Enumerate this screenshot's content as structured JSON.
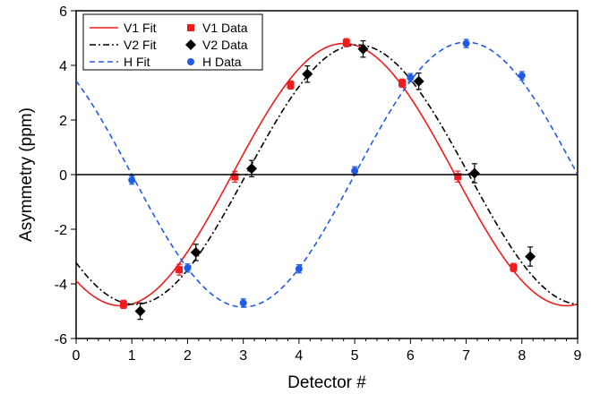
{
  "chart_data": {
    "type": "scatter",
    "title": "",
    "xlabel": "Detector #",
    "ylabel": "Asymmetry (ppm)",
    "xlim": [
      0,
      9
    ],
    "ylim": [
      -6,
      6
    ],
    "xticks": [
      "0",
      "1",
      "2",
      "3",
      "4",
      "5",
      "6",
      "7",
      "8",
      "9"
    ],
    "yticks": [
      "-6",
      "-4",
      "-2",
      "0",
      "2",
      "4",
      "6"
    ],
    "grid": false,
    "legend_position": "top-left",
    "legend": [
      "V1 Fit",
      "V1 Data",
      "V2 Fit",
      "V2 Data",
      "H Fit",
      "H Data"
    ],
    "series": [
      {
        "name": "V1 Data",
        "marker": "square",
        "color": "#ee1c1c",
        "x": [
          0.85,
          1.85,
          2.85,
          3.85,
          4.85,
          5.85,
          6.85,
          7.85
        ],
        "y": [
          -4.75,
          -3.48,
          -0.08,
          3.28,
          4.83,
          3.35,
          -0.07,
          -3.4
        ],
        "err": [
          0.15,
          0.2,
          0.2,
          0.15,
          0.15,
          0.15,
          0.2,
          0.15
        ]
      },
      {
        "name": "V2 Data",
        "marker": "diamond",
        "color": "#000000",
        "x": [
          1.15,
          2.15,
          3.15,
          4.15,
          5.15,
          6.15,
          7.15,
          8.15
        ],
        "y": [
          -5.0,
          -2.85,
          0.22,
          3.68,
          4.6,
          3.42,
          0.05,
          -3.0
        ],
        "err": [
          0.3,
          0.3,
          0.3,
          0.3,
          0.3,
          0.3,
          0.35,
          0.35
        ]
      },
      {
        "name": "H Data",
        "marker": "circle",
        "color": "#1f5ce5",
        "x": [
          1.0,
          2.0,
          3.0,
          4.0,
          5.0,
          6.0,
          7.0,
          8.0
        ],
        "y": [
          -0.2,
          -3.42,
          -4.7,
          -3.45,
          0.14,
          3.55,
          4.8,
          3.62
        ],
        "err": [
          0.15,
          0.15,
          0.15,
          0.15,
          0.15,
          0.15,
          0.15,
          0.15
        ]
      }
    ],
    "fits": [
      {
        "name": "V1 Fit",
        "style": "solid",
        "color": "#ee1c1c",
        "amplitude": 4.8,
        "peak_x": 4.8,
        "period": 8
      },
      {
        "name": "V2 Fit",
        "style": "dash-dot",
        "color": "#000000",
        "amplitude": 4.75,
        "peak_x": 5.05,
        "period": 8
      },
      {
        "name": "H Fit",
        "style": "dashed",
        "color": "#1f5ce5",
        "amplitude": 4.85,
        "peak_x": 7.0,
        "period": 8
      }
    ]
  }
}
